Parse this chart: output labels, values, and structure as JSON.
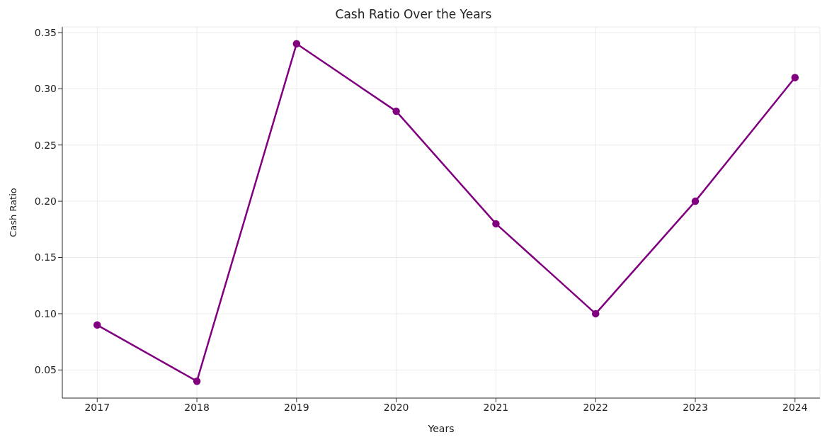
{
  "chart_data": {
    "type": "line",
    "title": "Cash Ratio Over the Years",
    "xlabel": "Years",
    "ylabel": "Cash Ratio",
    "x": [
      2017,
      2018,
      2019,
      2020,
      2021,
      2022,
      2023,
      2024
    ],
    "series": [
      {
        "color": "#800080",
        "values": [
          0.09,
          0.04,
          0.34,
          0.28,
          0.18,
          0.1,
          0.2,
          0.31
        ]
      }
    ],
    "xlim": [
      2016.65,
      2024.25
    ],
    "xticks": [
      2017,
      2018,
      2019,
      2020,
      2021,
      2022,
      2023,
      2024
    ],
    "ylim": [
      0.025,
      0.355
    ],
    "yticks": [
      {
        "value": 0.05,
        "label": "0.05"
      },
      {
        "value": 0.1,
        "label": "0.10"
      },
      {
        "value": 0.15,
        "label": "0.15"
      },
      {
        "value": 0.2,
        "label": "0.20"
      },
      {
        "value": 0.25,
        "label": "0.25"
      },
      {
        "value": 0.3,
        "label": "0.30"
      },
      {
        "value": 0.35,
        "label": "0.35"
      }
    ],
    "grid": true,
    "marker": "circle",
    "line_style": "solid",
    "legend": false
  }
}
